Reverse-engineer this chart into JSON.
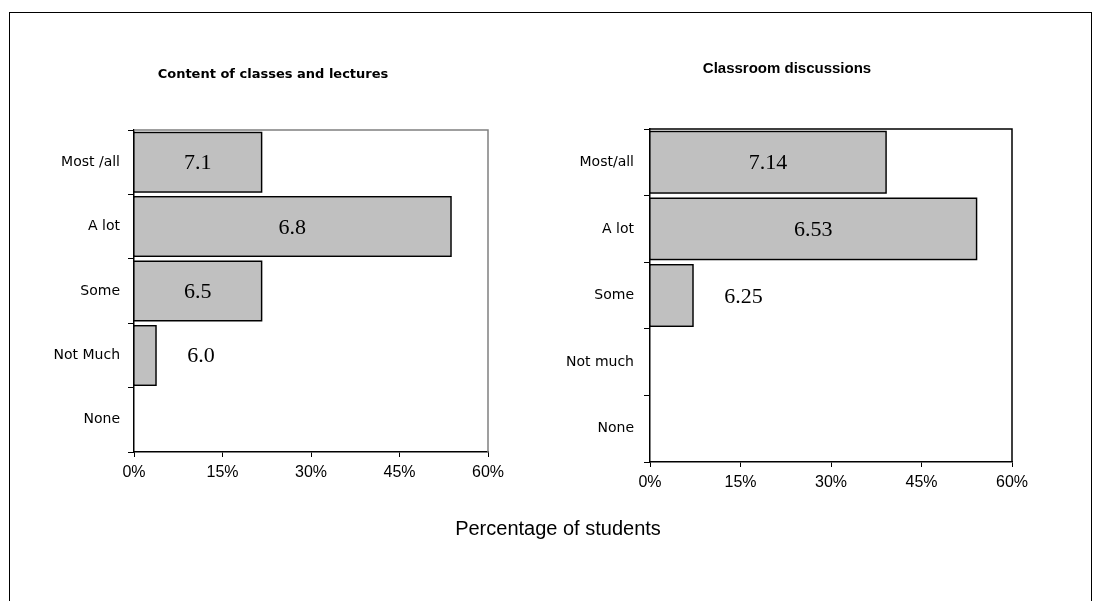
{
  "chart_data": [
    {
      "type": "bar",
      "orientation": "horizontal",
      "title": "Content of classes and lectures",
      "xlabel": "Percentage of students",
      "categories": [
        "Most /all",
        "A lot",
        "Some",
        "Not Much",
        "None"
      ],
      "values": [
        21.5,
        53.6,
        21.5,
        3.6,
        0
      ],
      "color": "#c0c0c0",
      "xlim": [
        0,
        60
      ],
      "xticks": [
        {
          "value": 0,
          "label": "0%"
        },
        {
          "value": 15,
          "label": "15%"
        },
        {
          "value": 30,
          "label": "30%"
        },
        {
          "value": 45,
          "label": "45%"
        },
        {
          "value": 60,
          "label": "60%"
        }
      ],
      "annotations": [
        "7.1",
        "6.8",
        "6.5",
        "6.0"
      ]
    },
    {
      "type": "bar",
      "orientation": "horizontal",
      "title": "Classroom discussions",
      "categories": [
        "Most/all",
        "A lot",
        "Some",
        "Not much",
        "None"
      ],
      "values": [
        39,
        54,
        7,
        0,
        0
      ],
      "color": "#c0c0c0",
      "xlim": [
        0,
        60
      ],
      "xticks": [
        {
          "value": 0,
          "label": "0%"
        },
        {
          "value": 15,
          "label": "15%"
        },
        {
          "value": 30,
          "label": "30%"
        },
        {
          "value": 45,
          "label": "45%"
        },
        {
          "value": 60,
          "label": "60%"
        }
      ],
      "annotations": [
        "7.14",
        "6.53",
        "6.25"
      ]
    }
  ]
}
